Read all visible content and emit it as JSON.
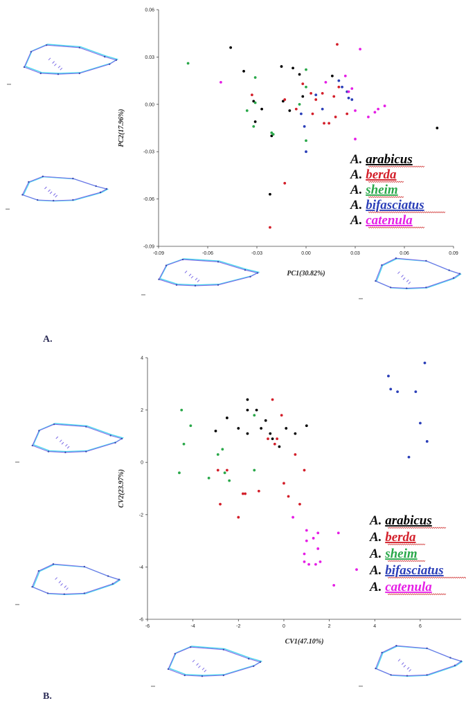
{
  "colors": {
    "arabicus": "#000000",
    "berda": "#d31f2a",
    "sheim": "#2aa84a",
    "bifasciatus": "#2b3fb8",
    "catenula": "#e51ee5",
    "outline_mean": "#7a6ae6",
    "outline_shape": "#4ad6ee",
    "outline_landmark": "#3a4ab0",
    "squiggle": "#cc2222"
  },
  "panels": [
    {
      "label": "A."
    },
    {
      "label": "B."
    }
  ],
  "chart_data": [
    {
      "type": "scatter",
      "title": "",
      "xlabel": "PC1(30.82%)",
      "ylabel": "PC2(17.96%)",
      "xlim": [
        -0.09,
        0.09
      ],
      "ylim": [
        -0.09,
        0.06
      ],
      "xticks": [
        -0.09,
        -0.06,
        -0.03,
        0.0,
        0.03,
        0.06,
        0.09
      ],
      "xtick_labels": [
        "-0.09",
        "-0.06",
        "-0.03",
        "0.00",
        "0.03",
        "0.06",
        "0.09"
      ],
      "yticks": [
        0.06,
        0.03,
        0.0,
        -0.03,
        -0.06,
        -0.09
      ],
      "ytick_labels": [
        "0.06",
        "0.03",
        "0.00",
        "-0.03",
        "-0.06",
        "-0.09"
      ],
      "legend_position": "bottom-right",
      "series": [
        {
          "name": "A. arabicus",
          "color_key": "arabicus",
          "points": [
            [
              -0.046,
              0.036
            ],
            [
              -0.038,
              0.021
            ],
            [
              -0.032,
              0.002
            ],
            [
              -0.031,
              -0.011
            ],
            [
              -0.027,
              -0.003
            ],
            [
              -0.021,
              -0.02
            ],
            [
              -0.022,
              -0.057
            ],
            [
              -0.015,
              0.024
            ],
            [
              -0.014,
              0.002
            ],
            [
              -0.01,
              -0.004
            ],
            [
              -0.008,
              0.023
            ],
            [
              -0.004,
              0.019
            ],
            [
              -0.002,
              0.005
            ],
            [
              0.016,
              0.018
            ],
            [
              0.08,
              -0.015
            ]
          ]
        },
        {
          "name": "A. berda",
          "color_key": "berda",
          "points": [
            [
              -0.033,
              0.006
            ],
            [
              -0.022,
              -0.078
            ],
            [
              -0.013,
              -0.05
            ],
            [
              -0.013,
              0.003
            ],
            [
              -0.006,
              -0.003
            ],
            [
              -0.002,
              0.013
            ],
            [
              0.003,
              0.007
            ],
            [
              0.004,
              -0.006
            ],
            [
              0.006,
              0.003
            ],
            [
              0.01,
              0.007
            ],
            [
              0.011,
              -0.012
            ],
            [
              0.014,
              -0.012
            ],
            [
              0.017,
              0.005
            ],
            [
              0.018,
              -0.008
            ],
            [
              0.02,
              0.011
            ],
            [
              0.019,
              0.038
            ],
            [
              0.025,
              -0.006
            ]
          ]
        },
        {
          "name": "A. sheim",
          "color_key": "sheim",
          "points": [
            [
              -0.072,
              0.026
            ],
            [
              -0.036,
              -0.004
            ],
            [
              -0.031,
              0.017
            ],
            [
              -0.031,
              0.001
            ],
            [
              -0.032,
              -0.014
            ],
            [
              -0.021,
              -0.018
            ],
            [
              -0.02,
              -0.019
            ],
            [
              0.0,
              0.022
            ],
            [
              0.0,
              0.011
            ],
            [
              -0.004,
              0.0
            ],
            [
              0.0,
              -0.023
            ]
          ]
        },
        {
          "name": "A. bifasciatus",
          "color_key": "bifasciatus",
          "points": [
            [
              -0.003,
              -0.006
            ],
            [
              -0.001,
              -0.014
            ],
            [
              0.0,
              -0.03
            ],
            [
              0.006,
              0.006
            ],
            [
              0.01,
              -0.003
            ],
            [
              0.02,
              0.015
            ],
            [
              0.022,
              0.011
            ],
            [
              0.025,
              0.008
            ],
            [
              0.026,
              0.004
            ],
            [
              0.028,
              0.003
            ]
          ]
        },
        {
          "name": "A. catenula",
          "color_key": "catenula",
          "points": [
            [
              -0.052,
              0.014
            ],
            [
              0.012,
              0.014
            ],
            [
              0.024,
              0.018
            ],
            [
              0.026,
              0.008
            ],
            [
              0.028,
              0.01
            ],
            [
              0.03,
              -0.004
            ],
            [
              0.033,
              0.035
            ],
            [
              0.038,
              -0.008
            ],
            [
              0.042,
              -0.005
            ],
            [
              0.044,
              -0.003
            ],
            [
              0.048,
              -0.001
            ],
            [
              0.03,
              -0.022
            ]
          ]
        }
      ]
    },
    {
      "type": "scatter",
      "title": "",
      "xlabel": "CV1(47.10%)",
      "ylabel": "CV2(23.97%)",
      "xlim": [
        -6,
        7.8
      ],
      "ylim": [
        -6,
        4
      ],
      "xticks": [
        -6,
        -4,
        -2,
        0,
        2,
        4,
        6
      ],
      "xtick_labels": [
        "-6",
        "-4",
        "-2",
        "0",
        "2",
        "4",
        "6"
      ],
      "yticks": [
        4,
        2,
        0,
        -2,
        -4,
        -6
      ],
      "ytick_labels": [
        "4",
        "2",
        "0",
        "-2",
        "-4",
        "-6"
      ],
      "legend_position": "bottom-right",
      "series": [
        {
          "name": "A. arabicus",
          "color_key": "arabicus",
          "points": [
            [
              -3.0,
              1.2
            ],
            [
              -2.5,
              1.7
            ],
            [
              -2.0,
              1.3
            ],
            [
              -1.6,
              1.1
            ],
            [
              -1.6,
              2.4
            ],
            [
              -1.6,
              2.0
            ],
            [
              -1.2,
              2.0
            ],
            [
              -1.0,
              1.3
            ],
            [
              -0.8,
              1.6
            ],
            [
              -0.6,
              1.1
            ],
            [
              -0.5,
              0.9
            ],
            [
              -0.2,
              0.6
            ],
            [
              0.1,
              1.3
            ],
            [
              0.5,
              1.1
            ],
            [
              1.0,
              1.4
            ]
          ]
        },
        {
          "name": "A. berda",
          "color_key": "berda",
          "points": [
            [
              -2.9,
              -0.3
            ],
            [
              -2.8,
              -1.6
            ],
            [
              -2.5,
              -0.3
            ],
            [
              -2.0,
              -2.1
            ],
            [
              -1.8,
              -1.2
            ],
            [
              -1.7,
              -1.2
            ],
            [
              -1.1,
              -1.1
            ],
            [
              -0.7,
              0.9
            ],
            [
              -0.5,
              2.4
            ],
            [
              -0.4,
              0.7
            ],
            [
              -0.3,
              0.9
            ],
            [
              -0.1,
              1.8
            ],
            [
              0.0,
              -0.8
            ],
            [
              0.2,
              -1.3
            ],
            [
              0.5,
              0.3
            ],
            [
              0.7,
              -1.6
            ],
            [
              0.9,
              -0.3
            ]
          ]
        },
        {
          "name": "A. sheim",
          "color_key": "sheim",
          "points": [
            [
              -4.6,
              -0.4
            ],
            [
              -4.5,
              2.0
            ],
            [
              -4.4,
              0.7
            ],
            [
              -4.1,
              1.4
            ],
            [
              -3.3,
              -0.6
            ],
            [
              -2.9,
              0.3
            ],
            [
              -2.7,
              0.5
            ],
            [
              -2.6,
              -0.4
            ],
            [
              -2.4,
              -0.7
            ],
            [
              -1.3,
              1.8
            ],
            [
              -1.3,
              -0.3
            ]
          ]
        },
        {
          "name": "A. bifasciatus",
          "color_key": "bifasciatus",
          "points": [
            [
              4.6,
              3.3
            ],
            [
              4.7,
              2.8
            ],
            [
              5.0,
              2.7
            ],
            [
              5.5,
              0.2
            ],
            [
              5.8,
              2.7
            ],
            [
              6.0,
              1.5
            ],
            [
              6.2,
              3.8
            ],
            [
              6.3,
              0.8
            ]
          ]
        },
        {
          "name": "A. catenula",
          "color_key": "catenula",
          "points": [
            [
              0.4,
              -2.1
            ],
            [
              0.9,
              -3.8
            ],
            [
              0.9,
              -3.5
            ],
            [
              1.0,
              -2.6
            ],
            [
              1.0,
              -3.0
            ],
            [
              1.1,
              -3.9
            ],
            [
              1.3,
              -2.9
            ],
            [
              1.4,
              -3.9
            ],
            [
              1.5,
              -2.7
            ],
            [
              1.5,
              -3.3
            ],
            [
              1.6,
              -3.8
            ],
            [
              2.2,
              -4.7
            ],
            [
              2.4,
              -2.7
            ],
            [
              3.2,
              -4.1
            ]
          ]
        }
      ]
    }
  ]
}
